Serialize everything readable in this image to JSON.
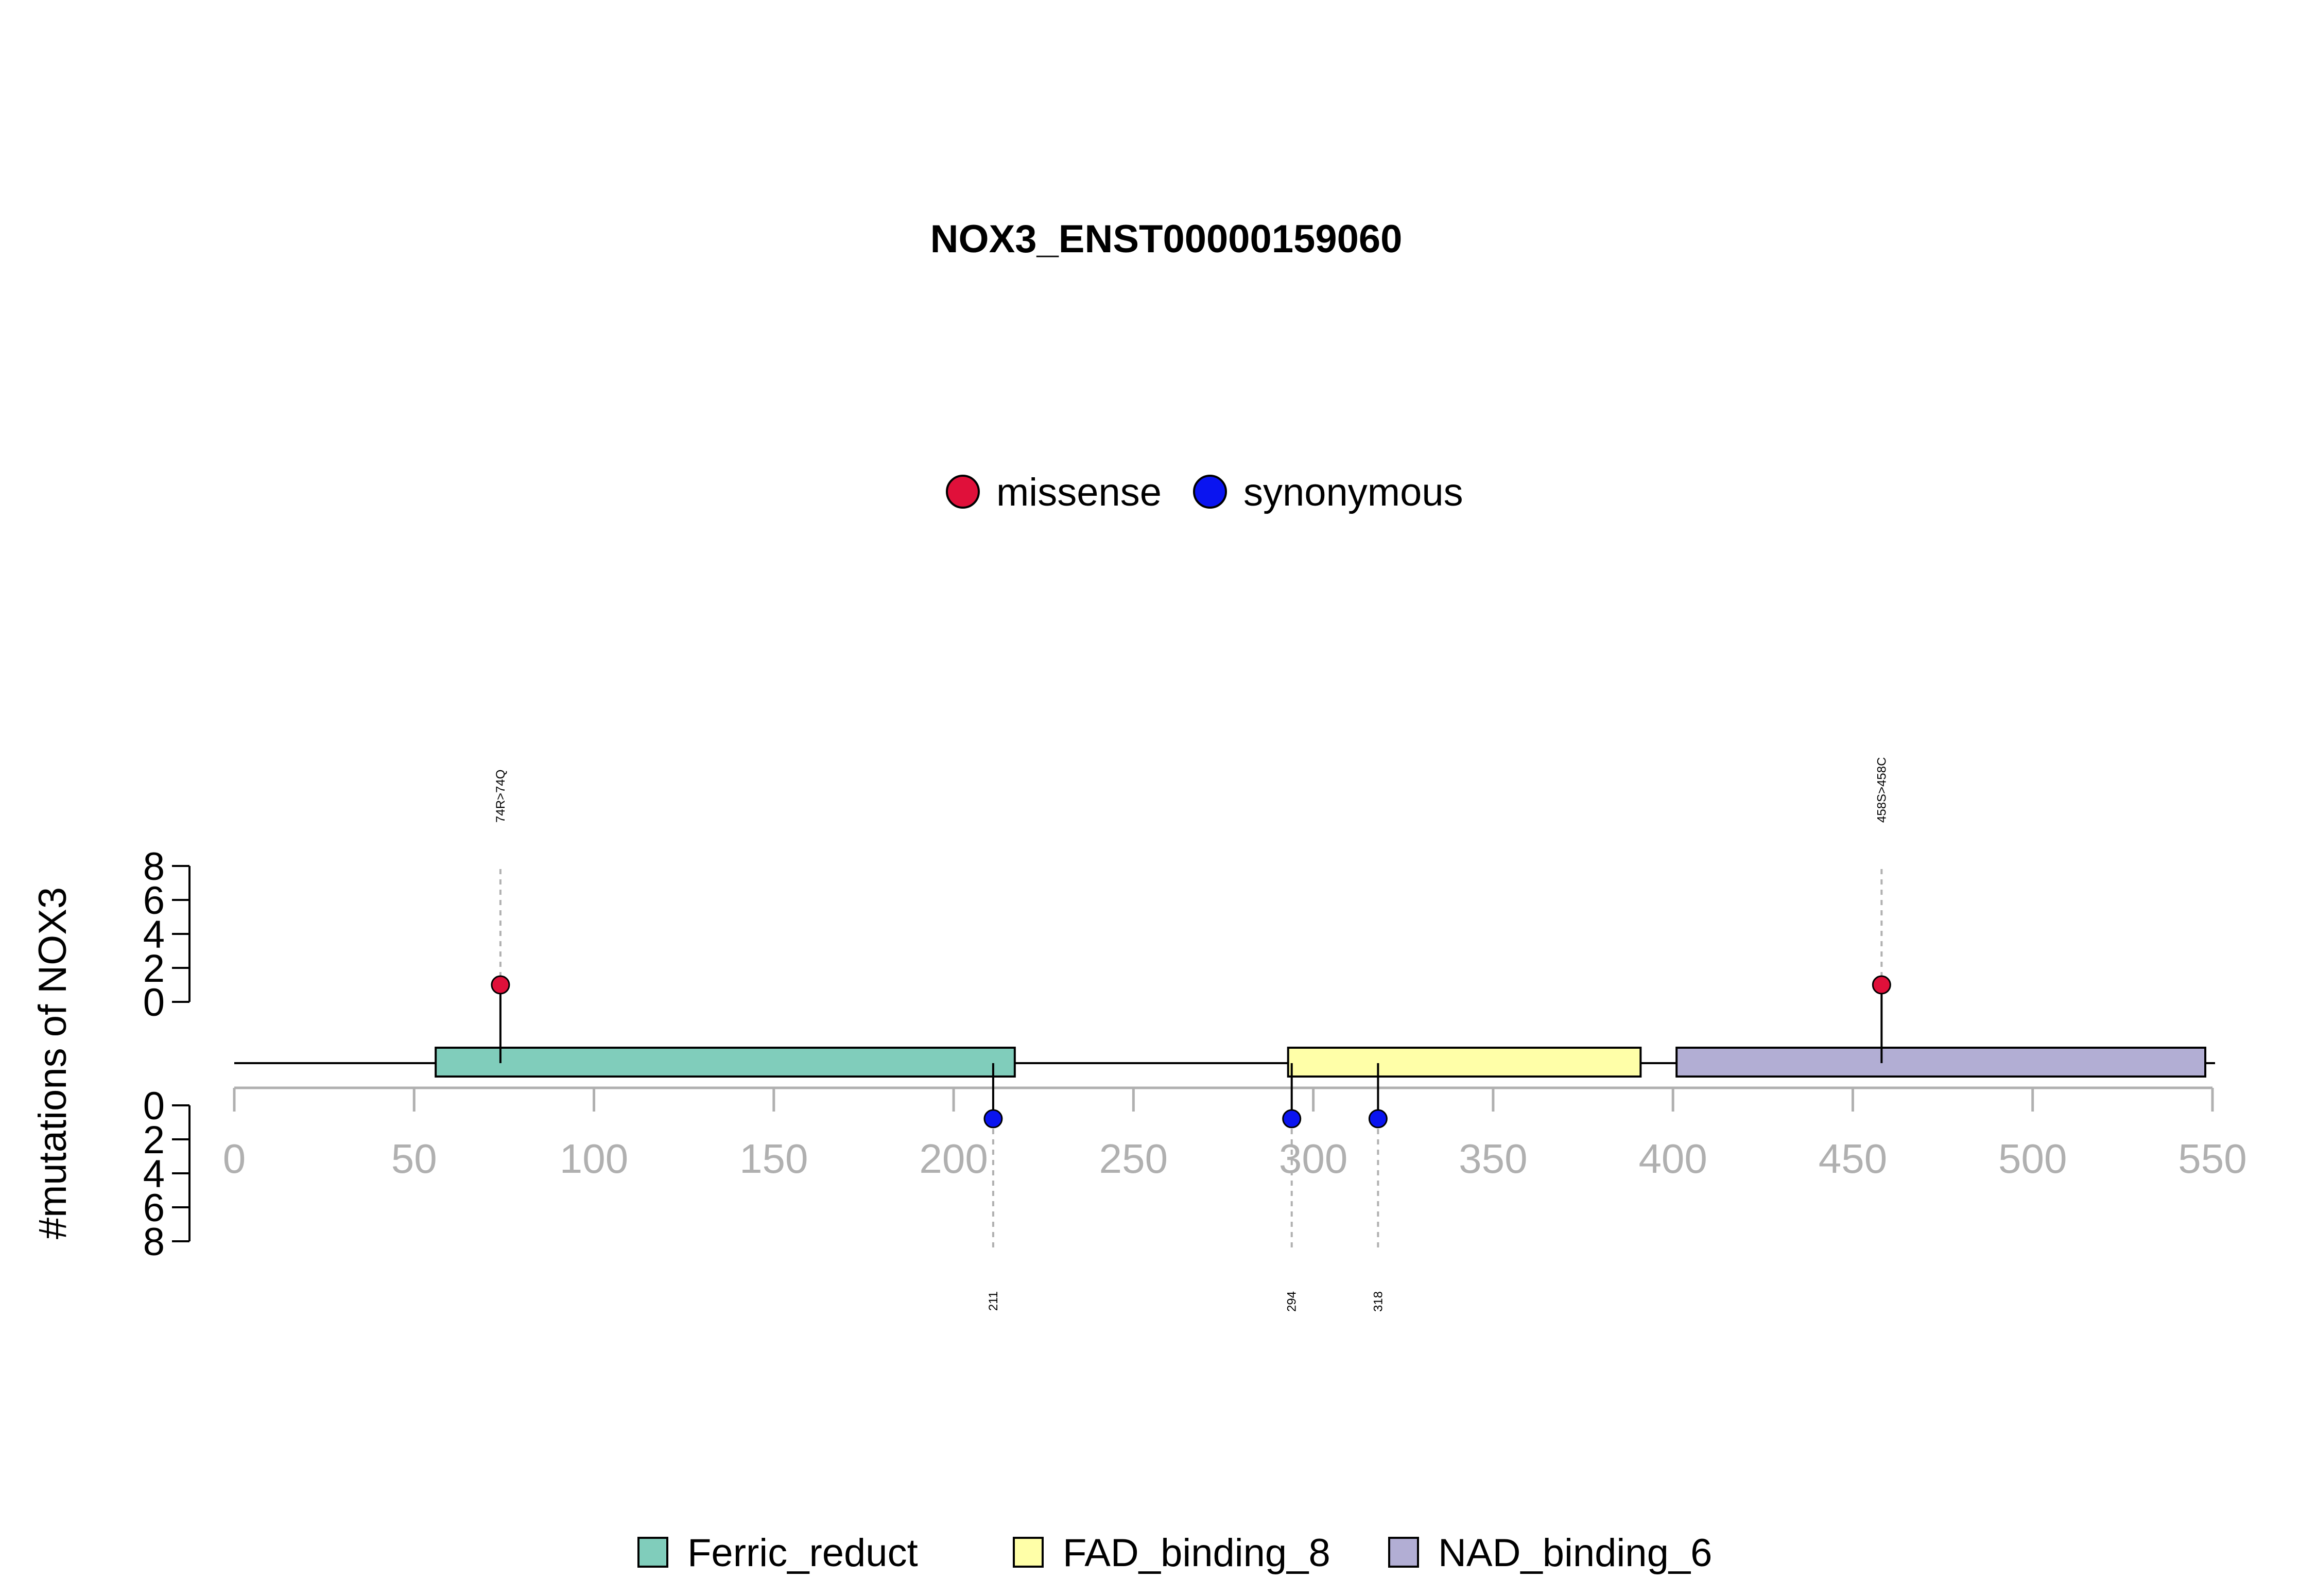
{
  "chart_data": {
    "type": "lollipop",
    "title": "NOX3_ENST00000159060",
    "ylabel": "#mutations of NOX3",
    "xlim": [
      0,
      550
    ],
    "x_ticks": [
      0,
      50,
      100,
      150,
      200,
      250,
      300,
      350,
      400,
      450,
      500,
      550
    ],
    "y_ticks_top": [
      0,
      2,
      4,
      6,
      8
    ],
    "y_ticks_bottom": [
      0,
      2,
      4,
      6,
      8
    ],
    "protein_length": 549,
    "mutation_legend": [
      {
        "label": "missense",
        "color": "#e0103a"
      },
      {
        "label": "synonymous",
        "color": "#0a14f0"
      }
    ],
    "domain_legend": [
      {
        "label": "Ferric_reduct",
        "color": "#80cdbb"
      },
      {
        "label": "FAD_binding_8",
        "color": "#ffffa8"
      },
      {
        "label": "NAD_binding_6",
        "color": "#b2aed4"
      }
    ],
    "domains": [
      {
        "name": "Ferric_reduct",
        "start": 56,
        "end": 217,
        "color": "#80cdbb"
      },
      {
        "name": "FAD_binding_8",
        "start": 293,
        "end": 391,
        "color": "#ffffa8"
      },
      {
        "name": "NAD_binding_6",
        "start": 401,
        "end": 548,
        "color": "#b2aed4"
      }
    ],
    "mutations": [
      {
        "position": 74,
        "count": 1,
        "type": "missense",
        "side": "top",
        "label": "74R>74Q"
      },
      {
        "position": 458,
        "count": 1,
        "type": "missense",
        "side": "top",
        "label": "458S>458C"
      },
      {
        "position": 211,
        "count": 1,
        "type": "synonymous",
        "side": "bottom",
        "label": "211"
      },
      {
        "position": 294,
        "count": 1,
        "type": "synonymous",
        "side": "bottom",
        "label": "294"
      },
      {
        "position": 318,
        "count": 1,
        "type": "synonymous",
        "side": "bottom",
        "label": "318"
      }
    ]
  }
}
